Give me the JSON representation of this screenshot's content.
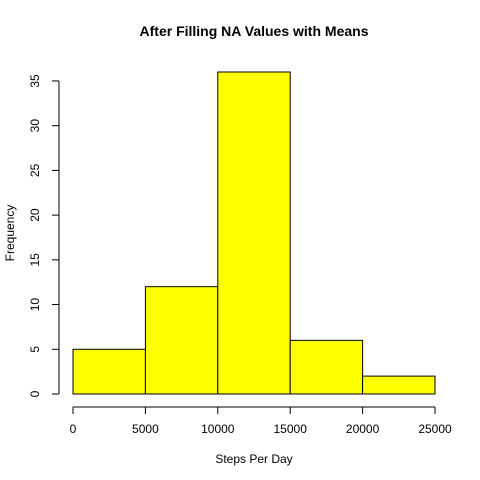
{
  "chart_data": {
    "type": "bar",
    "title": "After Filling NA Values with Means",
    "xlabel": "Steps Per Day",
    "ylabel": "Frequency",
    "bins": [
      {
        "from": 0,
        "to": 5000,
        "value": 5
      },
      {
        "from": 5000,
        "to": 10000,
        "value": 12
      },
      {
        "from": 10000,
        "to": 15000,
        "value": 36
      },
      {
        "from": 15000,
        "to": 20000,
        "value": 6
      },
      {
        "from": 20000,
        "to": 25000,
        "value": 2
      }
    ],
    "xticks": [
      "0",
      "5000",
      "10000",
      "15000",
      "20000",
      "25000"
    ],
    "xtick_values": [
      0,
      5000,
      10000,
      15000,
      20000,
      25000
    ],
    "yticks": [
      "0",
      "5",
      "10",
      "15",
      "20",
      "25",
      "30",
      "35"
    ],
    "ytick_values": [
      0,
      5,
      10,
      15,
      20,
      25,
      30,
      35
    ],
    "xlim": [
      0,
      25000
    ],
    "ylim": [
      0,
      36
    ],
    "grid": false,
    "bar_color": "#ffff00",
    "edge_color": "#000000"
  }
}
